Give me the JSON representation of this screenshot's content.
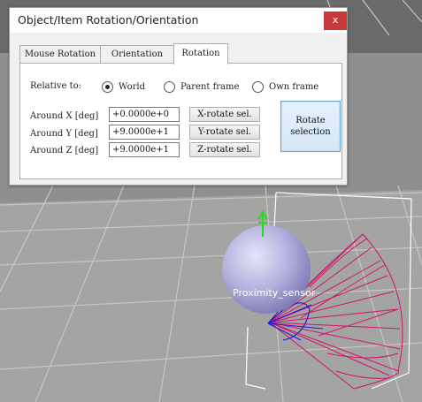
{
  "window": {
    "title": "Object/Item Rotation/Orientation",
    "close_glyph": "x"
  },
  "tabs": [
    {
      "label": "Mouse Rotation",
      "active": false
    },
    {
      "label": "Orientation",
      "active": false
    },
    {
      "label": "Rotation",
      "active": true
    }
  ],
  "relative_to": {
    "label": "Relative to:",
    "options": [
      {
        "label": "World",
        "checked": true
      },
      {
        "label": "Parent frame",
        "checked": false
      },
      {
        "label": "Own frame",
        "checked": false
      }
    ]
  },
  "axes": [
    {
      "label": "Around X [deg]",
      "value": "+0.0000e+0",
      "button": "X-rotate sel."
    },
    {
      "label": "Around Y [deg]",
      "value": "+9.0000e+1",
      "button": "Y-rotate sel."
    },
    {
      "label": "Around Z [deg]",
      "value": "+9.0000e+1",
      "button": "Z-rotate sel."
    }
  ],
  "rotate_button": {
    "line1": "Rotate",
    "line2": "selection"
  },
  "scene": {
    "object_label": "Proximity_sensor",
    "colors": {
      "floor_light": "#a9a9a7",
      "floor_dark": "#8c8c8a",
      "sphere": "#b6b4e0",
      "cone": "#d0156f",
      "bbox": "#ffffff",
      "axis_y": "#22dd22",
      "ray": "#1a1ad8"
    }
  }
}
